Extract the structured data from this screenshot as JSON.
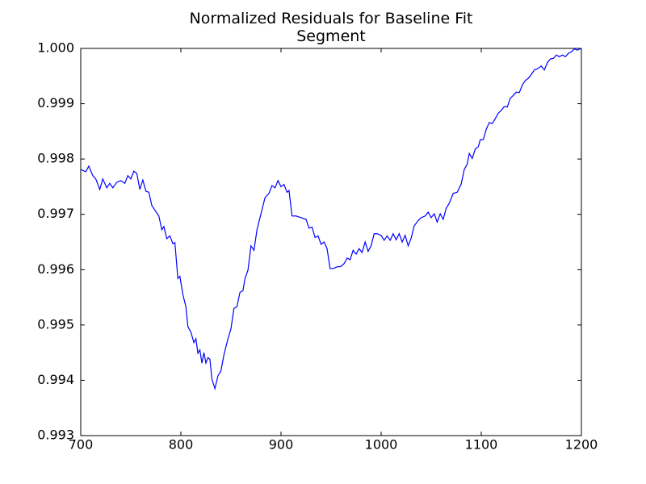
{
  "chart_data": {
    "type": "line",
    "title": "Normalized Residuals for Baseline Fit\nSegment",
    "x": [
      700,
      705,
      708,
      712,
      715,
      719,
      722,
      726,
      729,
      732,
      736,
      740,
      744,
      747,
      750,
      753,
      756,
      759,
      762,
      765,
      768,
      771,
      775,
      778,
      781,
      783,
      786,
      789,
      792,
      794,
      797,
      799,
      802,
      805,
      807,
      810,
      813,
      815,
      817,
      819,
      821,
      823,
      825,
      827,
      829,
      831,
      834,
      837,
      840,
      843,
      847,
      850,
      853,
      856,
      859,
      862,
      864,
      867,
      870,
      873,
      876,
      880,
      884,
      888,
      891,
      894,
      897,
      900,
      903,
      906,
      908,
      911,
      915,
      920,
      925,
      928,
      931,
      934,
      937,
      940,
      943,
      946,
      949,
      952,
      956,
      960,
      963,
      966,
      969,
      972,
      975,
      978,
      981,
      984,
      987,
      990,
      993,
      996,
      1000,
      1003,
      1006,
      1009,
      1012,
      1015,
      1018,
      1021,
      1024,
      1027,
      1030,
      1033,
      1037,
      1040,
      1044,
      1047,
      1050,
      1053,
      1056,
      1059,
      1062,
      1065,
      1068,
      1072,
      1076,
      1080,
      1083,
      1086,
      1088,
      1091,
      1094,
      1097,
      1099,
      1102,
      1105,
      1108,
      1111,
      1114,
      1117,
      1120,
      1123,
      1126,
      1129,
      1132,
      1135,
      1138,
      1141,
      1144,
      1147,
      1150,
      1153,
      1156,
      1160,
      1163,
      1166,
      1169,
      1172,
      1175,
      1178,
      1181,
      1184,
      1187,
      1190,
      1193,
      1196,
      1200
    ],
    "series": [
      {
        "color": "#0000ff",
        "values": [
          0.99781,
          0.99777,
          0.99787,
          0.9977,
          0.99764,
          0.99745,
          0.99764,
          0.99748,
          0.99756,
          0.99748,
          0.99758,
          0.99761,
          0.99756,
          0.9977,
          0.99764,
          0.99778,
          0.99774,
          0.99745,
          0.99762,
          0.99742,
          0.9974,
          0.99716,
          0.99705,
          0.99697,
          0.99672,
          0.99678,
          0.99656,
          0.99661,
          0.99647,
          0.99649,
          0.99584,
          0.99588,
          0.99555,
          0.99533,
          0.99497,
          0.99487,
          0.99468,
          0.99475,
          0.99449,
          0.99455,
          0.99431,
          0.9945,
          0.99431,
          0.99441,
          0.99438,
          0.99402,
          0.99385,
          0.99408,
          0.99417,
          0.99446,
          0.99475,
          0.99493,
          0.9953,
          0.99533,
          0.99559,
          0.99562,
          0.99584,
          0.99599,
          0.99643,
          0.99635,
          0.99672,
          0.99701,
          0.9973,
          0.99738,
          0.99752,
          0.99748,
          0.99761,
          0.9975,
          0.99754,
          0.9974,
          0.99743,
          0.99697,
          0.99697,
          0.99694,
          0.99691,
          0.99675,
          0.99677,
          0.99658,
          0.99661,
          0.99646,
          0.9965,
          0.99638,
          0.99602,
          0.99602,
          0.99605,
          0.99606,
          0.99611,
          0.99621,
          0.99618,
          0.99635,
          0.99628,
          0.99638,
          0.99631,
          0.9965,
          0.99633,
          0.99643,
          0.99665,
          0.99665,
          0.99662,
          0.99653,
          0.99661,
          0.99653,
          0.99665,
          0.99654,
          0.99665,
          0.9965,
          0.99662,
          0.99643,
          0.99657,
          0.99679,
          0.99689,
          0.99694,
          0.99697,
          0.99704,
          0.99694,
          0.99701,
          0.99686,
          0.99701,
          0.99691,
          0.99711,
          0.9972,
          0.99738,
          0.9974,
          0.99755,
          0.99781,
          0.99791,
          0.9981,
          0.99801,
          0.99818,
          0.99822,
          0.99835,
          0.99835,
          0.99854,
          0.99866,
          0.99864,
          0.99873,
          0.99883,
          0.99888,
          0.99895,
          0.99894,
          0.9991,
          0.99915,
          0.99921,
          0.9992,
          0.99934,
          0.99942,
          0.99946,
          0.99953,
          0.99961,
          0.99963,
          0.99968,
          0.99961,
          0.99974,
          0.99981,
          0.99982,
          0.99988,
          0.99985,
          0.99988,
          0.99985,
          0.99991,
          0.99994,
          0.99999,
          0.99997,
          1.0
        ]
      }
    ],
    "xlim": [
      700,
      1200
    ],
    "xticks": [
      700,
      800,
      900,
      1000,
      1100,
      1200
    ],
    "ylim": [
      0.993,
      1.0
    ],
    "yticks": [
      0.993,
      0.994,
      0.995,
      0.996,
      0.997,
      0.998,
      0.999,
      {
        "value": 1.0,
        "label": "1.000"
      }
    ],
    "grid": false
  }
}
